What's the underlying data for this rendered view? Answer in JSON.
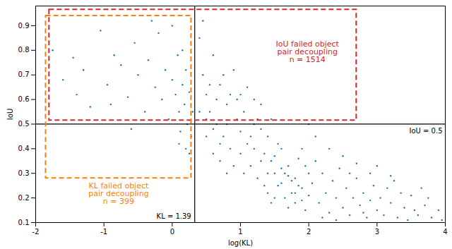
{
  "chart_data": {
    "type": "scatter",
    "x_label": "log(KL)",
    "y_label": "IoU",
    "color": "#1f77b4",
    "xlim": [
      -2,
      4
    ],
    "xticks": [
      -2,
      -1,
      0,
      1,
      2,
      3,
      4
    ],
    "ylim": [
      0.1,
      0.98
    ],
    "yticks": [
      0.1,
      0.2,
      0.3,
      0.4,
      0.5,
      0.6,
      0.7,
      0.8,
      0.9
    ],
    "x": [
      -1.75,
      -1.6,
      -1.45,
      -1.3,
      -1.2,
      -1.05,
      -0.95,
      -0.85,
      -0.75,
      -0.65,
      -0.55,
      -0.5,
      -0.4,
      -0.35,
      -0.25,
      -0.2,
      -0.15,
      -0.1,
      -0.05,
      0.0,
      0.05,
      0.08,
      0.1,
      0.12,
      0.15,
      0.18,
      0.2,
      0.22,
      0.25,
      0.28,
      -0.3,
      0.0,
      0.1,
      0.25,
      -1.4,
      -0.9,
      0.3,
      0.15,
      -0.6,
      0.2,
      0.4,
      0.45,
      0.5,
      0.55,
      0.6,
      0.65,
      0.7,
      0.75,
      0.8,
      0.85,
      0.9,
      0.95,
      1.0,
      0.4,
      0.5,
      0.6,
      0.7,
      0.8,
      0.9,
      1.0,
      0.45,
      0.55,
      0.65,
      0.75,
      0.85,
      0.95,
      0.5,
      0.6,
      0.7,
      0.8,
      1.05,
      1.1,
      1.15,
      1.2,
      1.25,
      1.3,
      1.35,
      1.4,
      1.45,
      1.5,
      1.55,
      1.6,
      1.65,
      1.7,
      1.75,
      1.8,
      1.85,
      1.9,
      1.95,
      2.0,
      1.1,
      1.2,
      1.3,
      1.4,
      1.5,
      1.6,
      1.7,
      1.8,
      1.9,
      2.0,
      1.05,
      1.15,
      1.25,
      1.35,
      1.45,
      1.55,
      1.65,
      1.75,
      1.85,
      1.95,
      1.2,
      1.4,
      1.6,
      1.8,
      1.5,
      1.7,
      1.9,
      1.3,
      1.0,
      1.45,
      2.05,
      2.1,
      2.15,
      2.2,
      2.25,
      2.3,
      2.35,
      2.4,
      2.45,
      2.5,
      2.55,
      2.6,
      2.65,
      2.7,
      2.75,
      2.8,
      2.85,
      2.9,
      2.95,
      3.0,
      2.1,
      2.3,
      2.5,
      2.7,
      2.9,
      2.2,
      2.4,
      2.6,
      2.8,
      2.0,
      3.05,
      3.1,
      3.2,
      3.25,
      3.3,
      3.4,
      3.5,
      3.6,
      3.7,
      3.8,
      3.15,
      3.35,
      3.55,
      3.75,
      3.9,
      3.45,
      3.65,
      3.95,
      3.0,
      3.2
    ],
    "values": [
      0.8,
      0.68,
      0.77,
      0.72,
      0.57,
      0.88,
      0.66,
      0.78,
      0.74,
      0.61,
      0.83,
      0.7,
      0.55,
      0.76,
      0.65,
      0.87,
      0.6,
      0.72,
      0.52,
      0.68,
      0.62,
      0.78,
      0.55,
      0.47,
      0.66,
      0.58,
      0.72,
      0.5,
      0.63,
      0.45,
      0.92,
      0.9,
      0.42,
      0.38,
      0.62,
      0.58,
      0.55,
      0.8,
      0.48,
      0.4,
      0.85,
      0.7,
      0.62,
      0.55,
      0.78,
      0.5,
      0.66,
      0.45,
      0.58,
      0.4,
      0.72,
      0.52,
      0.47,
      0.55,
      0.45,
      0.38,
      0.35,
      0.3,
      0.33,
      0.38,
      0.92,
      0.66,
      0.6,
      0.7,
      0.62,
      0.6,
      0.52,
      0.48,
      0.42,
      0.5,
      0.55,
      0.42,
      0.33,
      0.6,
      0.28,
      0.48,
      0.38,
      0.22,
      0.52,
      0.3,
      0.25,
      0.4,
      0.2,
      0.33,
      0.27,
      0.18,
      0.36,
      0.24,
      0.15,
      0.3,
      0.65,
      0.5,
      0.35,
      0.45,
      0.2,
      0.32,
      0.16,
      0.28,
      0.4,
      0.21,
      0.3,
      0.45,
      0.52,
      0.25,
      0.35,
      0.42,
      0.3,
      0.22,
      0.25,
      0.33,
      0.4,
      0.3,
      0.26,
      0.22,
      0.37,
      0.29,
      0.19,
      0.58,
      0.62,
      0.18,
      0.26,
      0.35,
      0.18,
      0.3,
      0.22,
      0.14,
      0.27,
      0.2,
      0.32,
      0.16,
      0.24,
      0.13,
      0.2,
      0.28,
      0.17,
      0.22,
      0.12,
      0.19,
      0.25,
      0.15,
      0.45,
      0.4,
      0.37,
      0.34,
      0.3,
      0.12,
      0.11,
      0.3,
      0.14,
      0.5,
      0.2,
      0.13,
      0.18,
      0.27,
      0.12,
      0.16,
      0.21,
      0.13,
      0.17,
      0.12,
      0.24,
      0.22,
      0.15,
      0.2,
      0.15,
      0.11,
      0.24,
      0.11,
      0.33,
      0.29
    ],
    "reference_lines": {
      "x": 0.33,
      "x_label": "KL = 1.39",
      "y": 0.5,
      "y_label": "IoU = 0.5"
    },
    "annotations": [
      {
        "text": "IoU failed object\npair decoupling\nn = 1514",
        "color": "#d62728",
        "x": [
          -1.8,
          2.7
        ],
        "y": [
          0.515,
          0.965
        ],
        "line_style": "dashed"
      },
      {
        "text": "KL failed object\npair decoupling\nn = 399",
        "color": "#ff7f0e",
        "x": [
          -1.85,
          0.28
        ],
        "y": [
          0.28,
          0.94
        ],
        "line_style": "dashed"
      }
    ]
  }
}
